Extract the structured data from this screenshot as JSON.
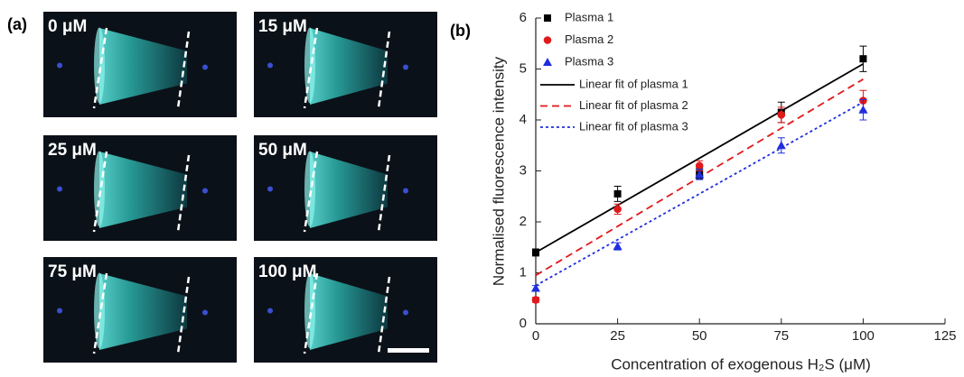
{
  "panel_a": {
    "label": "(a)",
    "images": [
      {
        "label": "0 μM"
      },
      {
        "label": "15 μM"
      },
      {
        "label": "25 μM"
      },
      {
        "label": "50 μM"
      },
      {
        "label": "75 μM"
      },
      {
        "label": "100 μM"
      }
    ]
  },
  "chart_data": {
    "type": "scatter",
    "panel_label": "(b)",
    "x_label": "Concentration of exogenous H₂S (μM)",
    "y_label": "Normalised fluorescence intensity",
    "xlim": [
      0,
      125
    ],
    "xticks": [
      0,
      25,
      50,
      75,
      100,
      125
    ],
    "ylim": [
      0,
      6
    ],
    "yticks": [
      0,
      1,
      2,
      3,
      4,
      5,
      6
    ],
    "x": [
      0,
      25,
      50,
      75,
      100
    ],
    "series": [
      {
        "name": "Plasma 1",
        "color": "#000000",
        "marker": "square",
        "values": [
          1.4,
          2.55,
          2.95,
          4.15,
          5.2
        ],
        "errors": [
          0.07,
          0.15,
          0.1,
          0.2,
          0.25
        ]
      },
      {
        "name": "Plasma 2",
        "color": "#e0191b",
        "marker": "circle",
        "values": [
          0.47,
          2.25,
          3.1,
          4.1,
          4.38
        ],
        "errors": [
          0.05,
          0.1,
          0.1,
          0.15,
          0.2
        ]
      },
      {
        "name": "Plasma 3",
        "color": "#1f2fe0",
        "marker": "triangle",
        "values": [
          0.7,
          1.52,
          2.93,
          3.5,
          4.2
        ],
        "errors": [
          0.05,
          0.07,
          0.1,
          0.15,
          0.2
        ]
      }
    ],
    "fits": [
      {
        "name": "Linear fit of plasma 1",
        "color": "#000000",
        "dash": "solid",
        "x": [
          0,
          100
        ],
        "values": [
          1.4,
          5.1
        ]
      },
      {
        "name": "Linear fit of plasma 2",
        "color": "#e0191b",
        "dash": "dashed",
        "x": [
          0,
          100
        ],
        "values": [
          0.95,
          4.8
        ]
      },
      {
        "name": "Linear fit of plasma 3",
        "color": "#1f2fe0",
        "dash": "dotted",
        "x": [
          0,
          100
        ],
        "values": [
          0.75,
          4.35
        ]
      }
    ]
  }
}
